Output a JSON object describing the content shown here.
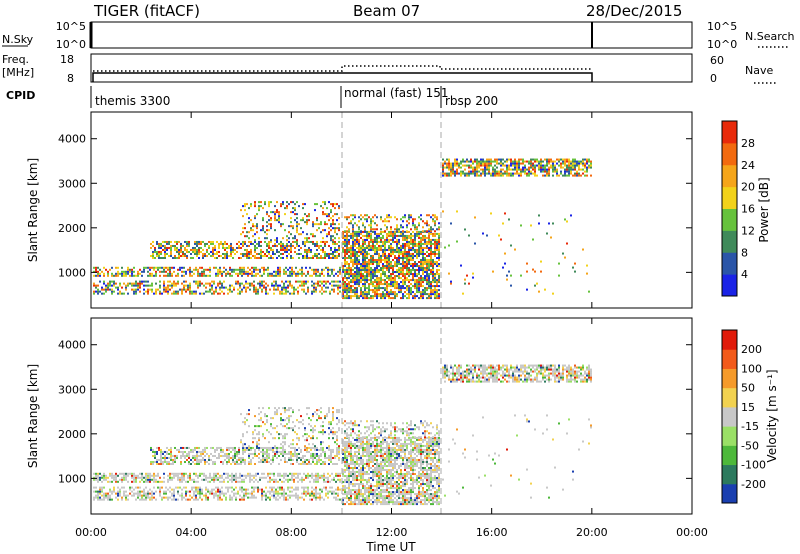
{
  "header": {
    "title": "TIGER (fitACF)",
    "beam": "Beam 07",
    "date": "28/Dec/2015"
  },
  "top_panels": {
    "nsky": {
      "label": "N.Sky",
      "right_label": "N.Search",
      "left_ticks": [
        "10^5",
        "10^0"
      ],
      "right_ticks": [
        "10^5",
        "10^0"
      ]
    },
    "freq": {
      "label_line1": "Freq.",
      "label_line2": "[MHz]",
      "right_label": "Nave",
      "left_ticks": [
        "18",
        "8"
      ],
      "right_ticks": [
        "60",
        "0"
      ]
    },
    "cpid": {
      "label": "CPID",
      "segments": [
        "themis 3300",
        "normal (fast) 151",
        "rbsp 200"
      ]
    }
  },
  "chart_data": [
    {
      "type": "heatmap",
      "panel": "power",
      "ylabel": "Slant Range [km]",
      "colorbar_label": "Power [dB]",
      "colorbar_ticks": [
        "4",
        "8",
        "12",
        "16",
        "20",
        "24",
        "28"
      ],
      "colorbar_colors": [
        "#1a23e6",
        "#2a55a8",
        "#3f8a5a",
        "#66c23c",
        "#f2d21a",
        "#f5a51a",
        "#f26a0f",
        "#e82a0a"
      ],
      "colorbar_range": [
        0,
        32
      ],
      "ylim": [
        200,
        4600
      ],
      "yticks": [
        "1000",
        "2000",
        "3000",
        "4000"
      ],
      "xlim": [
        "00:00",
        "24:00"
      ]
    },
    {
      "type": "heatmap",
      "panel": "velocity",
      "ylabel": "Slant Range [km]",
      "colorbar_label": "Velocity [m s⁻¹]",
      "colorbar_ticks": [
        "200",
        "100",
        "50",
        "15",
        "-15",
        "-50",
        "-100",
        "-200"
      ],
      "colorbar_colors": [
        "#1a3fb0",
        "#2c7a5e",
        "#4db83a",
        "#9ae066",
        "#c8c8c8",
        "#f2d250",
        "#f59a2a",
        "#f25a1a",
        "#e01a0a"
      ],
      "ylim": [
        200,
        4600
      ],
      "yticks": [
        "1000",
        "2000",
        "3000",
        "4000"
      ],
      "xlim": [
        "00:00",
        "24:00"
      ]
    }
  ],
  "xaxis": {
    "label": "Time UT",
    "ticks": [
      "00:00",
      "04:00",
      "08:00",
      "12:00",
      "16:00",
      "20:00",
      "00:00"
    ]
  }
}
